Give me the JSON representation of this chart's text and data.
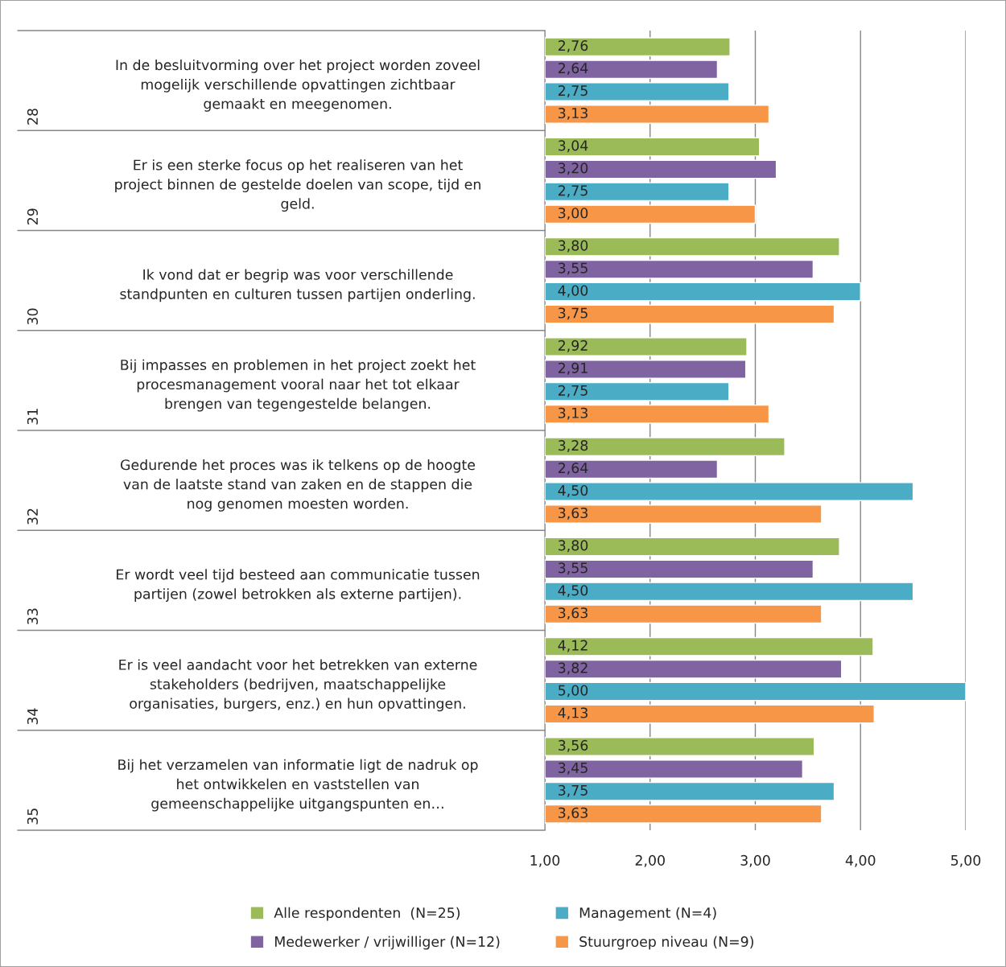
{
  "chart_data": {
    "type": "bar",
    "orientation": "horizontal",
    "categories": [
      "In de besluitvorming over het project worden zoveel\nmogelijk verschillende opvattingen zichtbaar\ngemaakt en meegenomen.",
      "Er is een sterke focus op het realiseren van het\nproject binnen de gestelde doelen van scope, tijd en\ngeld.",
      "Ik vond dat er begrip was voor verschillende\nstandpunten en culturen tussen partijen onderling.",
      "Bij impasses en problemen in het project zoekt het\nprocesmanagement vooral naar het tot elkaar\nbrengen van tegengestelde belangen.",
      "Gedurende het proces was ik telkens op de hoogte\nvan de laatste stand van zaken en de stappen die\nnog genomen moesten worden.",
      "Er wordt veel tijd besteed aan communicatie tussen\npartijen (zowel betrokken als externe partijen).",
      "Er is veel aandacht voor het betrekken van externe\nstakeholders (bedrijven, maatschappelijke\norganisaties, burgers, enz.) en hun opvattingen.",
      "Bij het verzamelen van informatie ligt de nadruk op\nhet ontwikkelen en vaststellen van\ngemeenschappelijke uitgangspunten en…"
    ],
    "annotations": [
      "28",
      "29",
      "30",
      "31",
      "32",
      "33",
      "34",
      "35"
    ],
    "series": [
      {
        "name": "Alle respondenten  (N=25)",
        "color": "#9bbb59",
        "values": [
          2.76,
          3.04,
          3.8,
          2.92,
          3.28,
          3.8,
          4.12,
          3.56
        ],
        "value_labels": [
          "2,76",
          "3,04",
          "3,80",
          "2,92",
          "3,28",
          "3,80",
          "4,12",
          "3,56"
        ]
      },
      {
        "name": "Medewerker / vrijwilliger (N=12)",
        "color": "#8064a2",
        "values": [
          2.64,
          3.2,
          3.55,
          2.91,
          2.64,
          3.55,
          3.82,
          3.45
        ],
        "value_labels": [
          "2,64",
          "3,20",
          "3,55",
          "2,91",
          "2,64",
          "3,55",
          "3,82",
          "3,45"
        ]
      },
      {
        "name": "Management (N=4)",
        "color": "#4bacc6",
        "values": [
          2.75,
          2.75,
          4.0,
          2.75,
          4.5,
          4.5,
          5.0,
          3.75
        ],
        "value_labels": [
          "2,75",
          "2,75",
          "4,00",
          "2,75",
          "4,50",
          "4,50",
          "5,00",
          "3,75"
        ]
      },
      {
        "name": "Stuurgroep niveau (N=9)",
        "color": "#f79646",
        "values": [
          3.13,
          3.0,
          3.75,
          3.13,
          3.63,
          3.63,
          4.13,
          3.63
        ],
        "value_labels": [
          "3,13",
          "3,00",
          "3,75",
          "3,13",
          "3,63",
          "3,63",
          "4,13",
          "3,63"
        ]
      }
    ],
    "xlim": [
      1,
      5
    ],
    "xticks": [
      {
        "value": 1,
        "label": "1,00"
      },
      {
        "value": 2,
        "label": "2,00"
      },
      {
        "value": 3,
        "label": "3,00"
      },
      {
        "value": 4,
        "label": "4,00"
      },
      {
        "value": 5,
        "label": "5,00"
      }
    ],
    "grid": "x",
    "legend": "bottom"
  }
}
